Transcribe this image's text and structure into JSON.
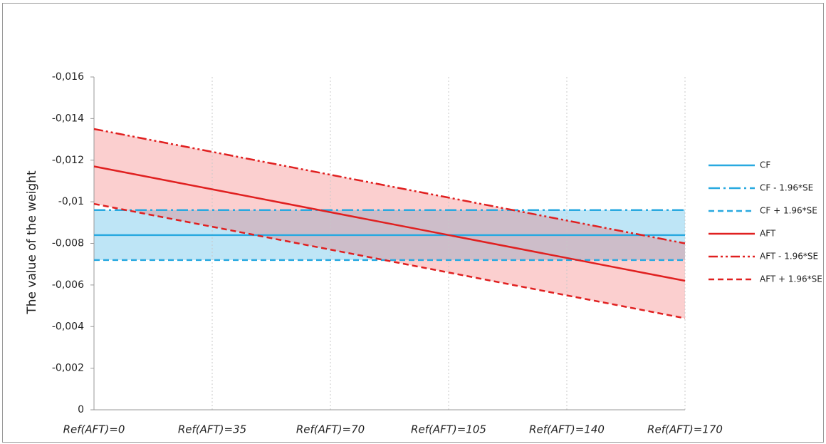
{
  "chart_data": {
    "type": "line",
    "y_label": "The value of the weight",
    "categories": [
      "Ref(AFT)=0",
      "Ref(AFT)=35",
      "Ref(AFT)=70",
      "Ref(AFT)=105",
      "Ref(AFT)=140",
      "Ref(AFT)=170"
    ],
    "ylim": [
      0,
      -0.016
    ],
    "yticks": [
      0,
      {
        "value": -0.002,
        "label": "-0,002"
      },
      {
        "value": -0.004,
        "label": "-0,004"
      },
      {
        "value": -0.006,
        "label": "-0,006"
      },
      {
        "value": -0.008,
        "label": "-0,008"
      },
      {
        "value": -0.01,
        "label": "-0,01"
      },
      {
        "value": -0.012,
        "label": "-0,012"
      },
      {
        "value": -0.014,
        "label": "-0,014"
      },
      {
        "value": -0.016,
        "label": "-0,016"
      }
    ],
    "grid": true,
    "legend": "right",
    "series": [
      {
        "name": "CF",
        "color": "#29a9e0",
        "dash": "solid",
        "values": [
          -0.0084,
          -0.0084,
          -0.0084,
          -0.0084,
          -0.0084,
          -0.0084
        ]
      },
      {
        "name": "CF - 1.96*SE",
        "color": "#29a9e0",
        "dash": "dashdot",
        "values": [
          -0.0096,
          -0.0096,
          -0.0096,
          -0.0096,
          -0.0096,
          -0.0096
        ]
      },
      {
        "name": "CF + 1.96*SE",
        "color": "#29a9e0",
        "dash": "dashed",
        "values": [
          -0.0072,
          -0.0072,
          -0.0072,
          -0.0072,
          -0.0072,
          -0.0072
        ]
      },
      {
        "name": "AFT",
        "color": "#e02020",
        "dash": "solid",
        "values": [
          -0.0117,
          -0.0106,
          -0.0095,
          -0.0084,
          -0.0073,
          -0.0062
        ]
      },
      {
        "name": "AFT - 1.96*SE",
        "color": "#e02020",
        "dash": "dashdotdot",
        "values": [
          -0.0135,
          -0.0124,
          -0.0113,
          -0.0102,
          -0.0091,
          -0.008
        ]
      },
      {
        "name": "AFT + 1.96*SE",
        "color": "#e02020",
        "dash": "dashed",
        "values": [
          -0.0099,
          -0.0088,
          -0.0077,
          -0.0066,
          -0.0055,
          -0.0044
        ]
      }
    ],
    "bands": [
      {
        "color": "#29a9e0",
        "between": [
          1,
          2
        ]
      },
      {
        "color": "#f35f5f",
        "between": [
          4,
          5
        ]
      }
    ]
  }
}
